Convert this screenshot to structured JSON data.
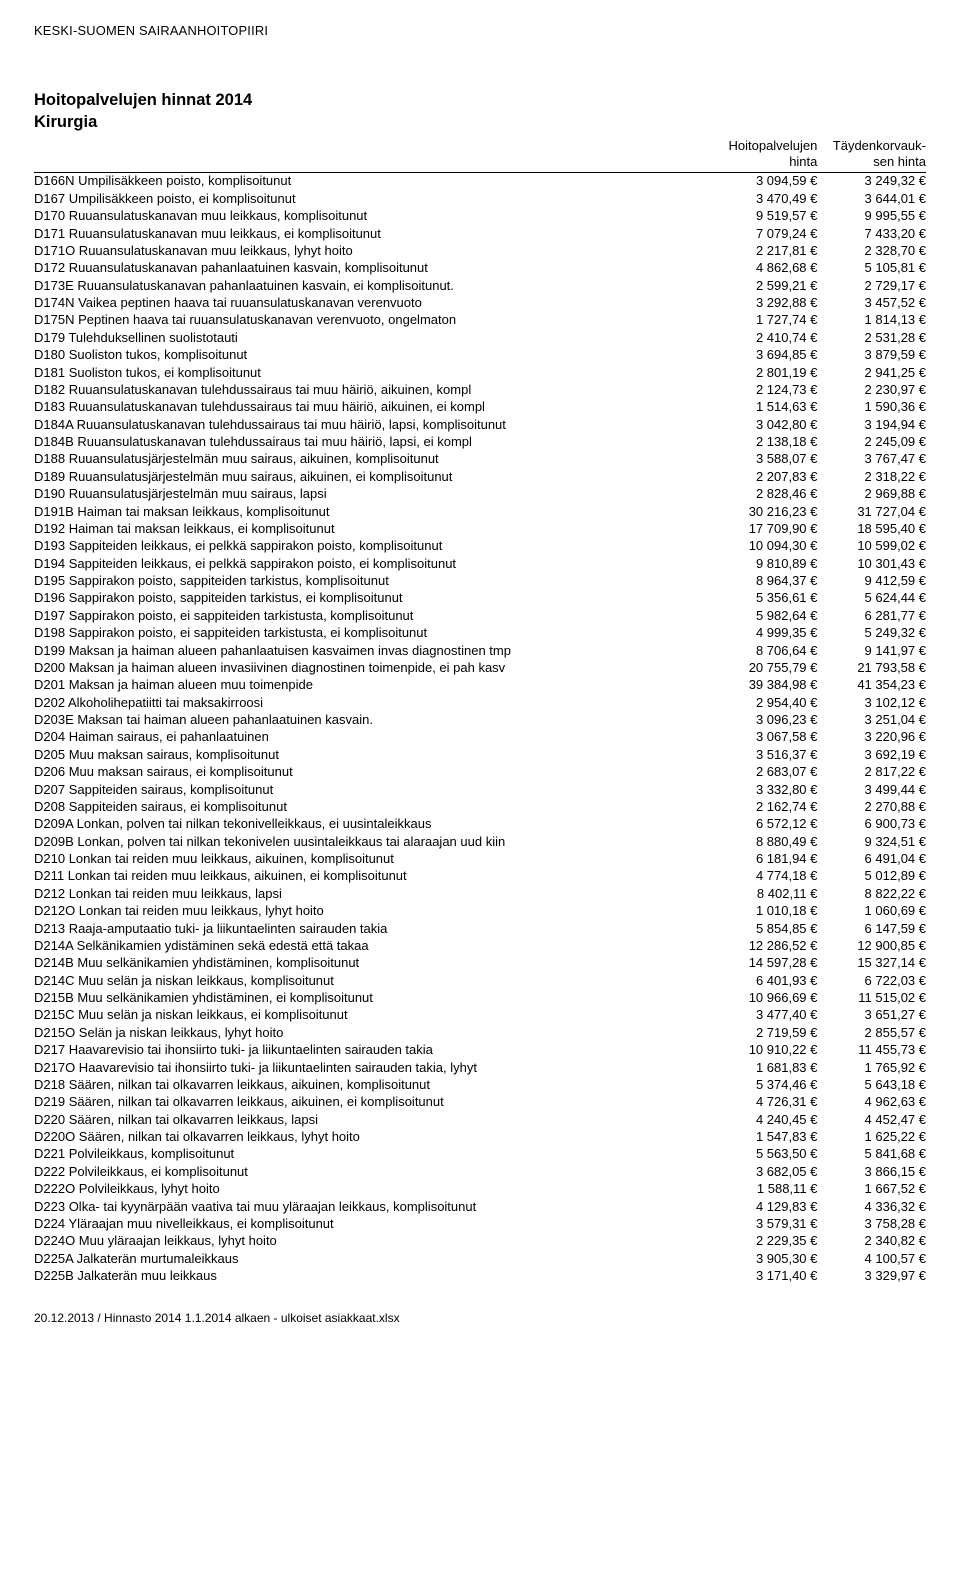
{
  "org": "KESKI-SUOMEN SAIRAANHOITOPIIRI",
  "title": "Hoitopalvelujen hinnat 2014",
  "subtitle": "Kirurgia",
  "colHeaders": {
    "col1_line1": "Hoitopalvelujen",
    "col1_line2": "hinta",
    "col2_line1": "Täydenkorvauk-",
    "col2_line2": "sen hinta"
  },
  "footer": "20.12.2013 / Hinnasto 2014 1.1.2014 alkaen - ulkoiset asiakkaat.xlsx",
  "currency": "€",
  "rows": [
    {
      "code": "D166N",
      "desc": "Umpilisäkkeen poisto, komplisoitunut",
      "v1": "3 094,59",
      "v2": "3 249,32"
    },
    {
      "code": "D167",
      "desc": "Umpilisäkkeen poisto, ei komplisoitunut",
      "v1": "3 470,49",
      "v2": "3 644,01"
    },
    {
      "code": "D170",
      "desc": "Ruuansulatuskanavan muu leikkaus, komplisoitunut",
      "v1": "9 519,57",
      "v2": "9 995,55"
    },
    {
      "code": "D171",
      "desc": "Ruuansulatuskanavan muu leikkaus, ei komplisoitunut",
      "v1": "7 079,24",
      "v2": "7 433,20"
    },
    {
      "code": "D171O",
      "desc": "Ruuansulatuskanavan muu leikkaus, lyhyt hoito",
      "v1": "2 217,81",
      "v2": "2 328,70"
    },
    {
      "code": "D172",
      "desc": "Ruuansulatuskanavan pahanlaatuinen kasvain, komplisoitunut",
      "v1": "4 862,68",
      "v2": "5 105,81"
    },
    {
      "code": "D173E",
      "desc": "Ruuansulatuskanavan pahanlaatuinen kasvain, ei komplisoitunut.",
      "v1": "2 599,21",
      "v2": "2 729,17"
    },
    {
      "code": "D174N",
      "desc": "Vaikea peptinen haava tai ruuansulatuskanavan verenvuoto",
      "v1": "3 292,88",
      "v2": "3 457,52"
    },
    {
      "code": "D175N",
      "desc": "Peptinen haava tai ruuansulatuskanavan verenvuoto, ongelmaton",
      "v1": "1 727,74",
      "v2": "1 814,13"
    },
    {
      "code": "D179",
      "desc": "Tulehduksellinen suolistotauti",
      "v1": "2 410,74",
      "v2": "2 531,28"
    },
    {
      "code": "D180",
      "desc": "Suoliston tukos, komplisoitunut",
      "v1": "3 694,85",
      "v2": "3 879,59"
    },
    {
      "code": "D181",
      "desc": "Suoliston tukos, ei komplisoitunut",
      "v1": "2 801,19",
      "v2": "2 941,25"
    },
    {
      "code": "D182",
      "desc": "Ruuansulatuskanavan tulehdussairaus tai  muu häiriö,  aikuinen, kompl",
      "v1": "2 124,73",
      "v2": "2 230,97"
    },
    {
      "code": "D183",
      "desc": "Ruuansulatuskanavan tulehdussairaus tai  muu häiriö,  aikuinen, ei kompl",
      "v1": "1 514,63",
      "v2": "1 590,36"
    },
    {
      "code": "D184A",
      "desc": "Ruuansulatuskanavan tulehdussairaus tai  muu häiriö,  lapsi, komplisoitunut",
      "v1": "3 042,80",
      "v2": "3 194,94"
    },
    {
      "code": "D184B",
      "desc": "Ruuansulatuskanavan tulehdussairaus tai  muu häiriö,  lapsi, ei kompl",
      "v1": "2 138,18",
      "v2": "2 245,09"
    },
    {
      "code": "D188",
      "desc": "Ruuansulatusjärjestelmän muu sairaus, aikuinen, komplisoitunut",
      "v1": "3 588,07",
      "v2": "3 767,47"
    },
    {
      "code": "D189",
      "desc": "Ruuansulatusjärjestelmän muu sairaus, aikuinen, ei komplisoitunut",
      "v1": "2 207,83",
      "v2": "2 318,22"
    },
    {
      "code": "D190",
      "desc": "Ruuansulatusjärjestelmän muu sairaus, lapsi",
      "v1": "2 828,46",
      "v2": "2 969,88"
    },
    {
      "code": "D191B",
      "desc": "Haiman tai maksan leikkaus, komplisoitunut",
      "v1": "30 216,23",
      "v2": "31 727,04"
    },
    {
      "code": "D192",
      "desc": "Haiman tai maksan leikkaus, ei komplisoitunut",
      "v1": "17 709,90",
      "v2": "18 595,40"
    },
    {
      "code": "D193",
      "desc": "Sappiteiden leikkaus, ei pelkkä sappirakon poisto, komplisoitunut",
      "v1": "10 094,30",
      "v2": "10 599,02"
    },
    {
      "code": "D194",
      "desc": "Sappiteiden leikkaus, ei pelkkä sappirakon poisto, ei komplisoitunut",
      "v1": "9 810,89",
      "v2": "10 301,43"
    },
    {
      "code": "D195",
      "desc": "Sappirakon poisto, sappiteiden tarkistus, komplisoitunut",
      "v1": "8 964,37",
      "v2": "9 412,59"
    },
    {
      "code": "D196",
      "desc": "Sappirakon poisto, sappiteiden tarkistus, ei komplisoitunut",
      "v1": "5 356,61",
      "v2": "5 624,44"
    },
    {
      "code": "D197",
      "desc": "Sappirakon poisto, ei sappiteiden tarkistusta, komplisoitunut",
      "v1": "5 982,64",
      "v2": "6 281,77"
    },
    {
      "code": "D198",
      "desc": "Sappirakon poisto, ei sappiteiden tarkistusta, ei komplisoitunut",
      "v1": "4 999,35",
      "v2": "5 249,32"
    },
    {
      "code": "D199",
      "desc": "Maksan ja haiman alueen pahanlaatuisen kasvaimen invas diagnostinen tmp",
      "v1": "8 706,64",
      "v2": "9 141,97"
    },
    {
      "code": "D200",
      "desc": "Maksan ja haiman alueen invasiivinen diagnostinen toimenpide, ei pah kasv",
      "v1": "20 755,79",
      "v2": "21 793,58"
    },
    {
      "code": "D201",
      "desc": "Maksan ja haiman alueen muu toimenpide",
      "v1": "39 384,98",
      "v2": "41 354,23"
    },
    {
      "code": "D202",
      "desc": "Alkoholihepatiitti tai maksakirroosi",
      "v1": "2 954,40",
      "v2": "3 102,12"
    },
    {
      "code": "D203E",
      "desc": "Maksan tai haiman alueen pahanlaatuinen kasvain.",
      "v1": "3 096,23",
      "v2": "3 251,04"
    },
    {
      "code": "D204",
      "desc": "Haiman sairaus, ei pahanlaatuinen",
      "v1": "3 067,58",
      "v2": "3 220,96"
    },
    {
      "code": "D205",
      "desc": "Muu maksan sairaus, komplisoitunut",
      "v1": "3 516,37",
      "v2": "3 692,19"
    },
    {
      "code": "D206",
      "desc": "Muu maksan sairaus, ei komplisoitunut",
      "v1": "2 683,07",
      "v2": "2 817,22"
    },
    {
      "code": "D207",
      "desc": "Sappiteiden sairaus, komplisoitunut",
      "v1": "3 332,80",
      "v2": "3 499,44"
    },
    {
      "code": "D208",
      "desc": "Sappiteiden sairaus, ei komplisoitunut",
      "v1": "2 162,74",
      "v2": "2 270,88"
    },
    {
      "code": "D209A",
      "desc": "Lonkan, polven tai nilkan tekonivelleikkaus, ei uusintaleikkaus",
      "v1": "6 572,12",
      "v2": "6 900,73"
    },
    {
      "code": "D209B",
      "desc": "Lonkan, polven tai nilkan tekonivelen uusintaleikkaus tai alaraajan uud kiin",
      "v1": "8 880,49",
      "v2": "9 324,51"
    },
    {
      "code": "D210",
      "desc": "Lonkan tai reiden muu leikkaus, aikuinen, komplisoitunut",
      "v1": "6 181,94",
      "v2": "6 491,04"
    },
    {
      "code": "D211",
      "desc": "Lonkan tai reiden muu leikkaus, aikuinen, ei komplisoitunut",
      "v1": "4 774,18",
      "v2": "5 012,89"
    },
    {
      "code": "D212",
      "desc": "Lonkan tai reiden muu leikkaus, lapsi",
      "v1": "8 402,11",
      "v2": "8 822,22"
    },
    {
      "code": "D212O",
      "desc": "Lonkan tai reiden muu leikkaus, lyhyt hoito",
      "v1": "1 010,18",
      "v2": "1 060,69"
    },
    {
      "code": "D213",
      "desc": "Raaja-amputaatio tuki- ja liikuntaelinten sairauden takia",
      "v1": "5 854,85",
      "v2": "6 147,59"
    },
    {
      "code": "D214A",
      "desc": "Selkänikamien ydistäminen sekä edestä että takaa",
      "v1": "12 286,52",
      "v2": "12 900,85"
    },
    {
      "code": "D214B",
      "desc": "Muu selkänikamien yhdistäminen, komplisoitunut",
      "v1": "14 597,28",
      "v2": "15 327,14"
    },
    {
      "code": "D214C",
      "desc": "Muu selän ja niskan leikkaus, komplisoitunut",
      "v1": "6 401,93",
      "v2": "6 722,03"
    },
    {
      "code": "D215B",
      "desc": "Muu selkänikamien yhdistäminen, ei komplisoitunut",
      "v1": "10 966,69",
      "v2": "11 515,02"
    },
    {
      "code": "D215C",
      "desc": "Muu selän ja niskan leikkaus, ei komplisoitunut",
      "v1": "3 477,40",
      "v2": "3 651,27"
    },
    {
      "code": "D215O",
      "desc": "Selän ja niskan leikkaus, lyhyt hoito",
      "v1": "2 719,59",
      "v2": "2 855,57"
    },
    {
      "code": "D217",
      "desc": "Haavarevisio tai ihonsiirto tuki- ja liikuntaelinten sairauden takia",
      "v1": "10 910,22",
      "v2": "11 455,73"
    },
    {
      "code": "D217O",
      "desc": "Haavarevisio tai ihonsiirto tuki- ja liikuntaelinten sairauden takia, lyhyt",
      "v1": "1 681,83",
      "v2": "1 765,92"
    },
    {
      "code": "D218",
      "desc": "Säären, nilkan tai olkavarren leikkaus, aikuinen, komplisoitunut",
      "v1": "5 374,46",
      "v2": "5 643,18"
    },
    {
      "code": "D219",
      "desc": "Säären, nilkan tai olkavarren leikkaus, aikuinen, ei komplisoitunut",
      "v1": "4 726,31",
      "v2": "4 962,63"
    },
    {
      "code": "D220",
      "desc": "Säären, nilkan tai olkavarren leikkaus, lapsi",
      "v1": "4 240,45",
      "v2": "4 452,47"
    },
    {
      "code": "D220O",
      "desc": "Säären, nilkan tai olkavarren leikkaus, lyhyt hoito",
      "v1": "1 547,83",
      "v2": "1 625,22"
    },
    {
      "code": "D221",
      "desc": "Polvileikkaus, komplisoitunut",
      "v1": "5 563,50",
      "v2": "5 841,68"
    },
    {
      "code": "D222",
      "desc": "Polvileikkaus, ei komplisoitunut",
      "v1": "3 682,05",
      "v2": "3 866,15"
    },
    {
      "code": "D222O",
      "desc": "Polvileikkaus, lyhyt hoito",
      "v1": "1 588,11",
      "v2": "1 667,52"
    },
    {
      "code": "D223",
      "desc": "Olka- tai kyynärpään vaativa tai muu yläraajan leikkaus, komplisoitunut",
      "v1": "4 129,83",
      "v2": "4 336,32"
    },
    {
      "code": "D224",
      "desc": "Yläraajan muu nivelleikkaus, ei komplisoitunut",
      "v1": "3 579,31",
      "v2": "3 758,28"
    },
    {
      "code": "D224O",
      "desc": "Muu yläraajan leikkaus, lyhyt hoito",
      "v1": "2 229,35",
      "v2": "2 340,82"
    },
    {
      "code": "D225A",
      "desc": "Jalkaterän murtumaleikkaus",
      "v1": "3 905,30",
      "v2": "4 100,57"
    },
    {
      "code": "D225B",
      "desc": "Jalkaterän muu leikkaus",
      "v1": "3 171,40",
      "v2": "3 329,97"
    }
  ]
}
